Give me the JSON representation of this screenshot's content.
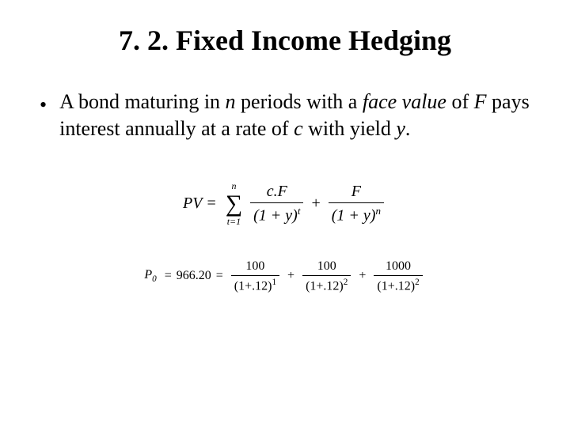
{
  "title": "7. 2. Fixed Income Hedging",
  "bullet": {
    "marker": "•",
    "t1": "A bond maturing in ",
    "n": "n",
    "t2": " periods with a ",
    "fv": "face value",
    "t3": " of ",
    "F": "F",
    "t4": " pays interest annually at a rate of ",
    "c": "c",
    "t5": " with yield ",
    "y": "y",
    "t6": "."
  },
  "eq1": {
    "lhs": "PV",
    "eq": "=",
    "sum_top": "n",
    "sum_sym": "∑",
    "sum_bot": "t=1",
    "frac1_num": "c.F",
    "frac1_den_base": "(1 + y)",
    "frac1_den_exp": "t",
    "plus": "+",
    "frac2_num": "F",
    "frac2_den_base": "(1 + y)",
    "frac2_den_exp": "n"
  },
  "eq2": {
    "lhs_P": "P",
    "lhs_sub": "0",
    "eq1": "=",
    "val": "966.20",
    "eq2": "=",
    "t1_num": "100",
    "t1_den_base": "(1+.12)",
    "t1_exp": "1",
    "plus": "+",
    "t2_num": "100",
    "t2_den_base": "(1+.12)",
    "t2_exp": "2",
    "t3_num": "1000",
    "t3_den_base": "(1+.12)",
    "t3_exp": "2"
  }
}
